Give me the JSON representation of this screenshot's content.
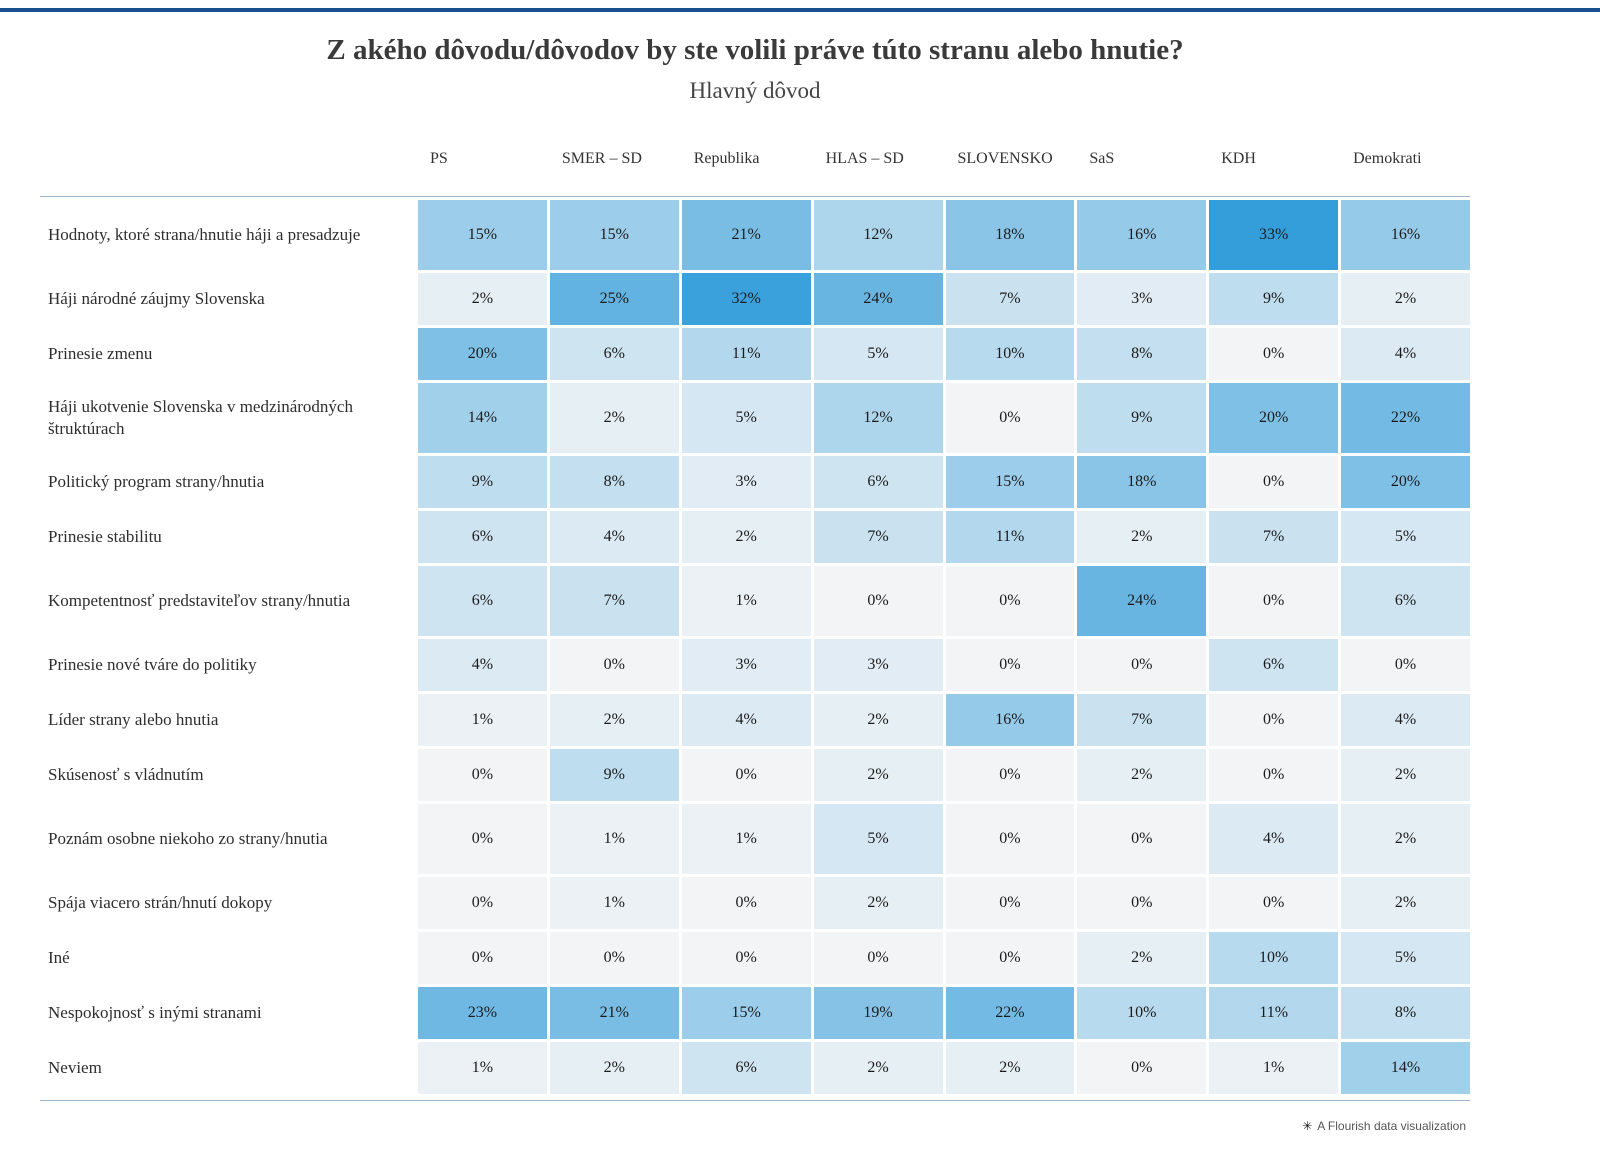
{
  "page": {
    "title": "Z akého dôvodu/dôvodov by ste volili práve túto stranu alebo hnutie?",
    "subtitle": "Hlavný dôvod"
  },
  "footer": {
    "credit": "A Flourish data visualization",
    "icon": "✳"
  },
  "colors": {
    "top_accent": "#17508c",
    "heat_min": "#f2f4f6",
    "heat_max": "#349edb",
    "rule": "#9db6cd"
  },
  "chart_data": {
    "type": "heatmap",
    "value_suffix": "%",
    "max_value": 33,
    "columns": [
      "PS",
      "SMER – SD",
      "Republika",
      "HLAS – SD",
      "SLOVENSKO",
      "SaS",
      "KDH",
      "Demokrati"
    ],
    "rows": [
      {
        "label": "Hodnoty, ktoré strana/hnutie háji a presadzuje",
        "values": [
          15,
          15,
          21,
          12,
          18,
          16,
          33,
          16
        ]
      },
      {
        "label": "Háji národné záujmy Slovenska",
        "values": [
          2,
          25,
          32,
          24,
          7,
          3,
          9,
          2
        ]
      },
      {
        "label": "Prinesie zmenu",
        "values": [
          20,
          6,
          11,
          5,
          10,
          8,
          0,
          4
        ]
      },
      {
        "label": "Háji ukotvenie Slovenska v medzinárodných štruktúrach",
        "values": [
          14,
          2,
          5,
          12,
          0,
          9,
          20,
          22
        ]
      },
      {
        "label": "Politický program strany/hnutia",
        "values": [
          9,
          8,
          3,
          6,
          15,
          18,
          0,
          20
        ]
      },
      {
        "label": "Prinesie stabilitu",
        "values": [
          6,
          4,
          2,
          7,
          11,
          2,
          7,
          5
        ]
      },
      {
        "label": "Kompetentnosť predstaviteľov strany/hnutia",
        "values": [
          6,
          7,
          1,
          0,
          0,
          24,
          0,
          6
        ]
      },
      {
        "label": "Prinesie nové tváre do politiky",
        "values": [
          4,
          0,
          3,
          3,
          0,
          0,
          6,
          0
        ]
      },
      {
        "label": "Líder strany alebo hnutia",
        "values": [
          1,
          2,
          4,
          2,
          16,
          7,
          0,
          4
        ]
      },
      {
        "label": "Skúsenosť s vládnutím",
        "values": [
          0,
          9,
          0,
          2,
          0,
          2,
          0,
          2
        ]
      },
      {
        "label": "Poznám osobne niekoho zo strany/hnutia",
        "values": [
          0,
          1,
          1,
          5,
          0,
          0,
          4,
          2
        ]
      },
      {
        "label": "Spája viacero strán/hnutí dokopy",
        "values": [
          0,
          1,
          0,
          2,
          0,
          0,
          0,
          2
        ]
      },
      {
        "label": "Iné",
        "values": [
          0,
          0,
          0,
          0,
          0,
          2,
          10,
          5
        ]
      },
      {
        "label": "Nespokojnosť s inými stranami",
        "values": [
          23,
          21,
          15,
          19,
          22,
          10,
          11,
          8
        ]
      },
      {
        "label": "Neviem",
        "values": [
          1,
          2,
          6,
          2,
          2,
          0,
          1,
          14
        ]
      }
    ]
  }
}
